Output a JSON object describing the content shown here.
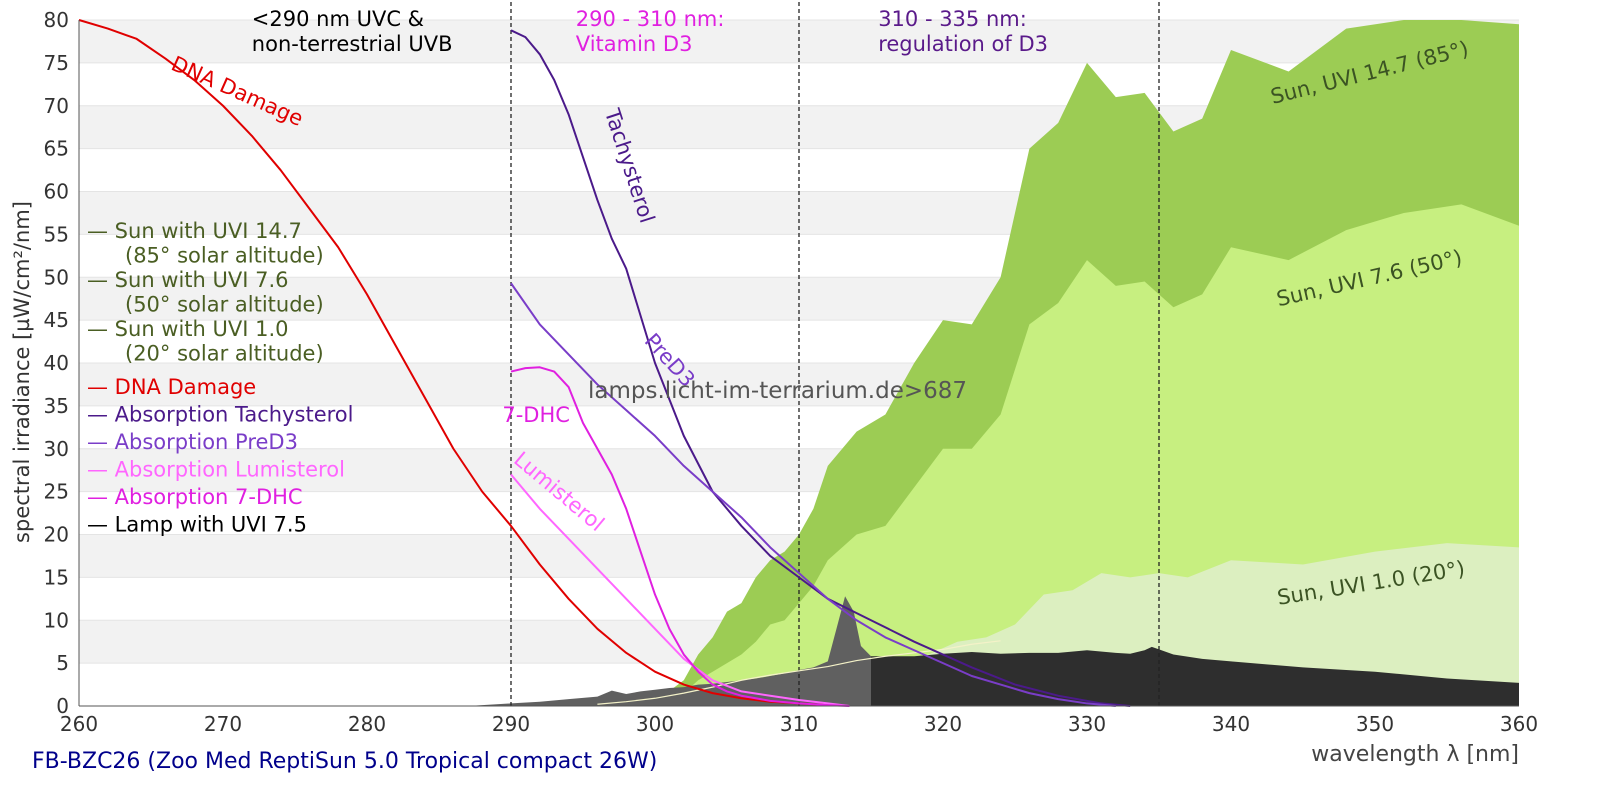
{
  "chart_data": {
    "type": "area",
    "xlabel": "wavelength λ [nm]",
    "ylabel": "spectral irradiance [µW/cm²/nm]",
    "caption": "FB-BZC26 (Zoo Med ReptiSun 5.0 Tropical compact 26W)",
    "watermark": "lamps.licht-im-terrarium.de>687",
    "xlim": [
      260,
      360
    ],
    "ylim": [
      0,
      80
    ],
    "x_ticks": [
      260,
      270,
      280,
      290,
      300,
      310,
      320,
      330,
      340,
      350,
      360
    ],
    "y_ticks": [
      0,
      5,
      10,
      15,
      20,
      25,
      30,
      35,
      40,
      45,
      50,
      55,
      60,
      65,
      70,
      75,
      80
    ],
    "grid": "horizontal bands",
    "region_lines": [
      290,
      310,
      335
    ],
    "region_labels": [
      {
        "lines": [
          "<290 nm UVC &",
          "non-terrestrial UVB"
        ],
        "x": 272,
        "color": "#000000"
      },
      {
        "lines": [
          "290 - 310 nm:",
          "Vitamin D3"
        ],
        "x": 294.5,
        "color": "#e020e0"
      },
      {
        "lines": [
          "310 - 335 nm:",
          "regulation of D3"
        ],
        "x": 315.5,
        "color": "#5a1a8a"
      }
    ],
    "legend": {
      "placement": "left",
      "entries": [
        {
          "lines": [
            "— Sun with UVI 14.7",
            "(85° solar altitude)"
          ],
          "color": "#4a5e23"
        },
        {
          "lines": [
            "— Sun with UVI 7.6",
            "(50° solar altitude)"
          ],
          "color": "#4a5e23"
        },
        {
          "lines": [
            "— Sun with UVI 1.0",
            "(20° solar altitude)"
          ],
          "color": "#4a5e23"
        },
        {
          "lines": [
            "— DNA Damage"
          ],
          "color": "#e00000"
        },
        {
          "lines": [
            "— Absorption Tachysterol"
          ],
          "color": "#4b1a8a"
        },
        {
          "lines": [
            "— Absorption PreD3"
          ],
          "color": "#7a3dc8"
        },
        {
          "lines": [
            "— Absorption Lumisterol"
          ],
          "color": "#ff66ff"
        },
        {
          "lines": [
            "— Absorption 7-DHC"
          ],
          "color": "#e020e0"
        },
        {
          "lines": [
            "— Lamp with UVI 7.5"
          ],
          "color": "#000000"
        }
      ]
    },
    "series": [
      {
        "name": "Sun with UVI 14.7",
        "kind": "area",
        "color": "#9ccc54",
        "x": [
          300,
          302,
          303,
          304,
          305,
          306,
          307,
          308,
          309,
          310,
          311,
          312,
          314,
          316,
          318,
          320,
          322,
          324,
          326,
          328,
          330,
          332,
          334,
          336,
          338,
          340,
          344,
          348,
          352,
          356,
          360
        ],
        "y": [
          0.5,
          3,
          6,
          8,
          11,
          12,
          15,
          17,
          18,
          20,
          23,
          28,
          32,
          34,
          40,
          45,
          44.5,
          50,
          65,
          68,
          75,
          71,
          71.5,
          67,
          68.5,
          76.5,
          74,
          79,
          82,
          83,
          79.5
        ],
        "label": "Sun, UVI 14.7 (85°)"
      },
      {
        "name": "Sun with UVI 7.6",
        "kind": "area",
        "color": "#c7ef80",
        "x": [
          301,
          302,
          303,
          304,
          305,
          306,
          307,
          308,
          309,
          310,
          311,
          312,
          314,
          316,
          318,
          320,
          322,
          324,
          326,
          328,
          330,
          332,
          334,
          336,
          338,
          340,
          344,
          348,
          352,
          356,
          360
        ],
        "y": [
          0.5,
          1.5,
          3,
          4,
          5,
          6,
          7.5,
          9.5,
          10,
          12,
          14,
          17,
          20,
          21,
          25.5,
          30,
          30,
          34,
          44.5,
          47,
          52,
          49,
          49.5,
          46.5,
          48,
          53.5,
          52,
          55.5,
          57.5,
          58.5,
          56
        ],
        "label": "Sun, UVI 7.6 (50°)"
      },
      {
        "name": "Sun with UVI 1.0",
        "kind": "area",
        "color": "#dcefc0",
        "x": [
          303,
          305,
          307,
          309,
          311,
          313,
          315,
          317,
          319,
          321,
          323,
          325,
          327,
          329,
          331,
          333,
          335,
          337,
          340,
          345,
          350,
          355,
          360
        ],
        "y": [
          0.3,
          0.5,
          1,
          1.5,
          2,
          2.7,
          3.5,
          5,
          6,
          7.5,
          8,
          9.5,
          13,
          13.5,
          15.5,
          15,
          15.5,
          15,
          17,
          16.5,
          18,
          19,
          18.5
        ],
        "label": "Sun, UVI 1.0 (20°)"
      },
      {
        "name": "Lamp with UVI 7.5",
        "kind": "area",
        "color": "#2e2e2e",
        "color_low": "#606060",
        "split_x": 315,
        "x": [
          287,
          289,
          290,
          292,
          294,
          296,
          297,
          298,
          299,
          300,
          301,
          302,
          303,
          304,
          305,
          306,
          307,
          308,
          309,
          310,
          311,
          312,
          312.6,
          313.2,
          313.8,
          314.3,
          315,
          316,
          318,
          320,
          322,
          324,
          326,
          328,
          330,
          332,
          333,
          334,
          334.5,
          335,
          336,
          338,
          340,
          345,
          350,
          355,
          360
        ],
        "y": [
          0,
          0.2,
          0.3,
          0.5,
          0.8,
          1.1,
          1.8,
          1.4,
          1.7,
          1.9,
          2.1,
          2.2,
          2.5,
          2.6,
          2.8,
          3,
          3.2,
          3.5,
          3.8,
          4.2,
          4.5,
          5.2,
          9,
          12.8,
          11,
          7,
          5.8,
          5.8,
          5.8,
          6.1,
          6.3,
          6.1,
          6.2,
          6.2,
          6.5,
          6.2,
          6.1,
          6.5,
          6.9,
          6.6,
          6,
          5.5,
          5.2,
          4.5,
          4,
          3.2,
          2.7
        ]
      },
      {
        "name": "Absorption Lumisterol (inner)",
        "kind": "line",
        "color": "#f4f2c8",
        "width": 1.2,
        "x": [
          296,
          298,
          300,
          302,
          304,
          306,
          308,
          310,
          312,
          314,
          316,
          318,
          320,
          322,
          324
        ],
        "y": [
          0.2,
          0.5,
          0.9,
          1.5,
          2.2,
          3,
          3.6,
          4.1,
          4.6,
          5.3,
          5.8,
          6.2,
          6.6,
          7.2,
          7.6
        ]
      },
      {
        "name": "DNA Damage",
        "kind": "line",
        "color": "#e00000",
        "width": 2,
        "x": [
          260,
          262,
          264,
          266,
          268,
          270,
          272,
          274,
          276,
          278,
          280,
          282,
          284,
          286,
          288,
          290,
          292,
          294,
          296,
          298,
          300,
          302,
          304,
          306,
          308,
          310,
          312
        ],
        "y": [
          80,
          79,
          77.8,
          75.5,
          73,
          70,
          66.5,
          62.5,
          58,
          53.5,
          48,
          42,
          36,
          30,
          25,
          21,
          16.5,
          12.5,
          9,
          6.2,
          4,
          2.5,
          1.5,
          0.9,
          0.5,
          0.3,
          0.1
        ],
        "label": "DNA Damage"
      },
      {
        "name": "Absorption Tachysterol",
        "kind": "line",
        "color": "#4b1a8a",
        "width": 2,
        "x": [
          290,
          291,
          292,
          293,
          294,
          295,
          296,
          297,
          298,
          300,
          302,
          304,
          306,
          308,
          310,
          312,
          315,
          318,
          320,
          322,
          325,
          328,
          331,
          333
        ],
        "y": [
          78.8,
          78,
          76,
          73,
          69,
          64,
          59,
          54.5,
          51,
          40,
          31.5,
          25,
          21,
          17.5,
          15,
          12.5,
          10,
          7.5,
          6,
          4.5,
          2.5,
          1.2,
          0.3,
          0
        ],
        "label": "Tachysterol"
      },
      {
        "name": "Absorption PreD3",
        "kind": "line",
        "color": "#7a3dc8",
        "width": 2,
        "x": [
          290,
          292,
          294,
          296,
          298,
          300,
          302,
          304,
          306,
          308,
          310,
          312,
          314,
          316,
          318,
          320,
          322,
          324,
          326,
          328,
          330,
          332
        ],
        "y": [
          49.3,
          44.5,
          41,
          37.5,
          34.5,
          31.5,
          28,
          25,
          22,
          18.5,
          15.5,
          12.5,
          10,
          8,
          6.5,
          5,
          3.5,
          2.5,
          1.5,
          0.8,
          0.3,
          0
        ],
        "label": "PreD3"
      },
      {
        "name": "Absorption Lumisterol",
        "kind": "line",
        "color": "#ff66ff",
        "width": 2,
        "x": [
          290,
          292,
          294,
          296,
          298,
          300,
          302,
          304,
          306,
          308,
          310,
          312,
          313.5
        ],
        "y": [
          27,
          23,
          19.5,
          16,
          12.5,
          9,
          5.5,
          3,
          1.7,
          1.2,
          0.7,
          0.3,
          0
        ],
        "label": "Lumisterol"
      },
      {
        "name": "Absorption 7-DHC",
        "kind": "line",
        "color": "#e020e0",
        "width": 2,
        "x": [
          290,
          291,
          292,
          293,
          294,
          295,
          296,
          297,
          298,
          299,
          300,
          301,
          302,
          303,
          304,
          305,
          306,
          308,
          310,
          312,
          313.5
        ],
        "y": [
          39,
          39.4,
          39.5,
          39,
          37.2,
          33,
          30,
          27,
          23,
          18,
          13,
          9,
          6,
          4,
          2.5,
          1.7,
          1.2,
          0.6,
          0.3,
          0.1,
          0
        ],
        "label": "7-DHC"
      }
    ]
  }
}
